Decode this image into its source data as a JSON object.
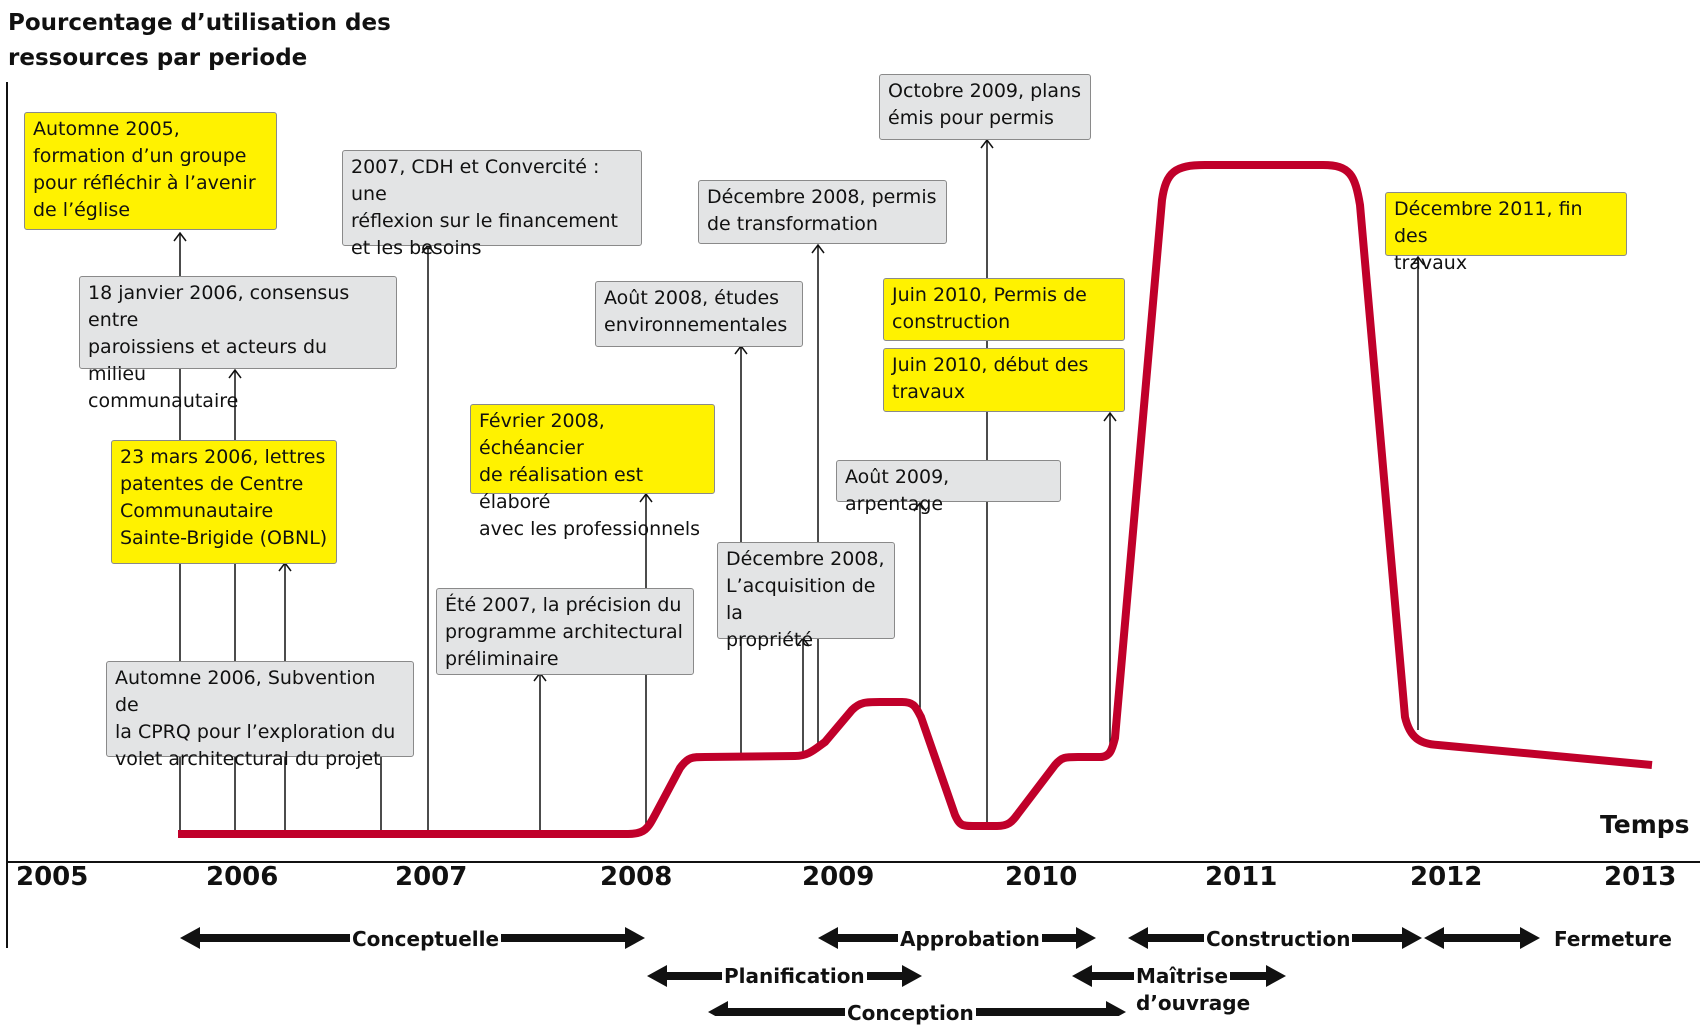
{
  "title": {
    "line1": "Pourcentage d’utilisation des",
    "line2": "ressources par periode"
  },
  "x_axis_label": "Temps",
  "years": [
    "2005",
    "2006",
    "2007",
    "2008",
    "2009",
    "2010",
    "2011",
    "2012",
    "2013"
  ],
  "events": [
    {
      "id": "e1",
      "lines": [
        "Automne 2005,",
        "formation d’un groupe",
        "pour réfléchir à l’avenir",
        "de l’église"
      ]
    },
    {
      "id": "e2",
      "lines": [
        "18 janvier 2006, consensus entre",
        "paroissiens et acteurs du milieu",
        "communautaire"
      ]
    },
    {
      "id": "e3",
      "lines": [
        "23 mars 2006, lettres",
        "patentes de Centre",
        "Communautaire",
        "Sainte-Brigide  (OBNL)"
      ]
    },
    {
      "id": "e4",
      "lines": [
        "Automne 2006, Subvention de",
        "la CPRQ pour l’exploration du",
        "volet architectural du projet"
      ]
    },
    {
      "id": "e5",
      "lines": [
        "2007, CDH et Convercité : une",
        "réflexion sur le financement",
        "et les besoins"
      ]
    },
    {
      "id": "e6",
      "lines": [
        "Été 2007, la précision du",
        "programme architectural",
        "préliminaire"
      ]
    },
    {
      "id": "e7",
      "lines": [
        "Février 2008, échéancier",
        "de réalisation est élaboré",
        "avec les professionnels"
      ]
    },
    {
      "id": "e8",
      "lines": [
        "Août 2008, études",
        "environnementales"
      ]
    },
    {
      "id": "e9",
      "lines": [
        "Décembre 2008, permis",
        "de transformation"
      ]
    },
    {
      "id": "e10",
      "lines": [
        "Décembre 2008,",
        "L’acquisition de la",
        "propriété"
      ]
    },
    {
      "id": "e11",
      "lines": [
        "Octobre 2009, plans",
        "émis pour permis"
      ]
    },
    {
      "id": "e12",
      "lines": [
        "Août 2009, arpentage"
      ]
    },
    {
      "id": "e13",
      "lines": [
        "Juin 2010, Permis de",
        "construction"
      ]
    },
    {
      "id": "e14",
      "lines": [
        "Juin 2010, début des",
        "travaux"
      ]
    },
    {
      "id": "e15",
      "lines": [
        "Décembre 2011, fin des",
        "travaux"
      ]
    }
  ],
  "phases": [
    {
      "label": "Conceptuelle"
    },
    {
      "label": "Planification"
    },
    {
      "label": "Conception"
    },
    {
      "label": "Approbation"
    },
    {
      "label": "Maîtrise",
      "label2": "d’ouvrage"
    },
    {
      "label": "Construction"
    },
    {
      "label": "Fermeture"
    }
  ],
  "colors": {
    "curve": "#c0002a",
    "gray_box": "#e3e4e5",
    "yellow_box": "#fff200",
    "arrow": "#111111"
  }
}
